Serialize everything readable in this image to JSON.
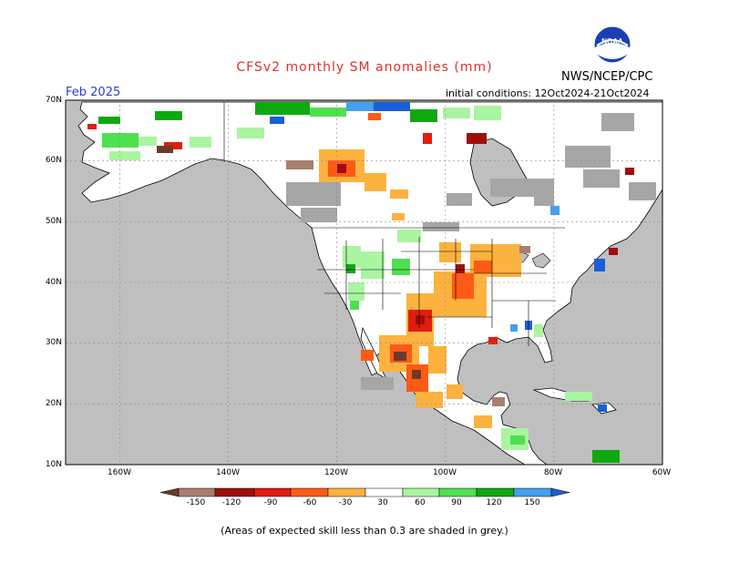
{
  "title": "CFSv2 monthly SM anomalies (mm)",
  "agency": "NWS/NCEP/CPC",
  "logo_text": "NOAA",
  "forecast_month": "Feb 2025",
  "initial_conditions": "initial conditions: 12Oct2024-21Oct2024",
  "footnote": "(Areas of expected skill less than 0.3 are shaded in grey.)",
  "lat_labels": [
    "70N",
    "60N",
    "50N",
    "40N",
    "30N",
    "20N",
    "10N"
  ],
  "lon_labels": [
    "160W",
    "140W",
    "120W",
    "100W",
    "80W",
    "60W"
  ],
  "colorbar": {
    "tick_labels": [
      "-150",
      "-120",
      "-90",
      "-60",
      "-30",
      "30",
      "60",
      "90",
      "120",
      "150"
    ],
    "colors": [
      "#6b3b2a",
      "#a87f6e",
      "#a00d0d",
      "#e11d0d",
      "#fd5a16",
      "#fcb23e",
      "#ffffff",
      "#a9f5a0",
      "#4fe04f",
      "#10a810",
      "#45a0f0",
      "#1a5fd8"
    ]
  },
  "colors": {
    "land": "#ffffff",
    "ocean": "#bfbfbf",
    "grey_skill": "#a6a6a6",
    "title": "#e0302a",
    "month": "#2a3fd0"
  }
}
